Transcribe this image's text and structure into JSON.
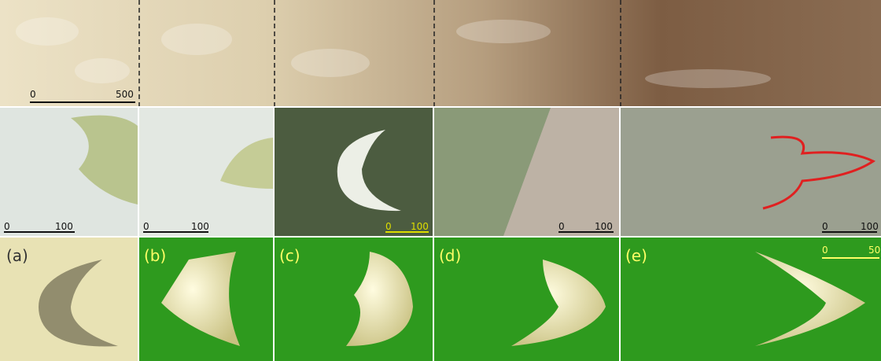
{
  "top_strip": {
    "scale_bar": {
      "start": "0",
      "end": "500"
    }
  },
  "satellite_panels": [
    {
      "scale_bar": {
        "start": "0",
        "end": "100"
      }
    },
    {
      "scale_bar": {
        "start": "0",
        "end": "100"
      }
    },
    {
      "scale_bar": {
        "start": "0",
        "end": "100"
      }
    },
    {
      "scale_bar": {
        "start": "0",
        "end": "100"
      }
    },
    {
      "scale_bar": {
        "start": "0",
        "end": "100"
      }
    }
  ],
  "model_panels": [
    {
      "label": "(a)"
    },
    {
      "label": "(b)"
    },
    {
      "label": "(c)"
    },
    {
      "label": "(d)"
    },
    {
      "label": "(e)",
      "scale_bar": {
        "start": "0",
        "end": "50"
      }
    }
  ]
}
